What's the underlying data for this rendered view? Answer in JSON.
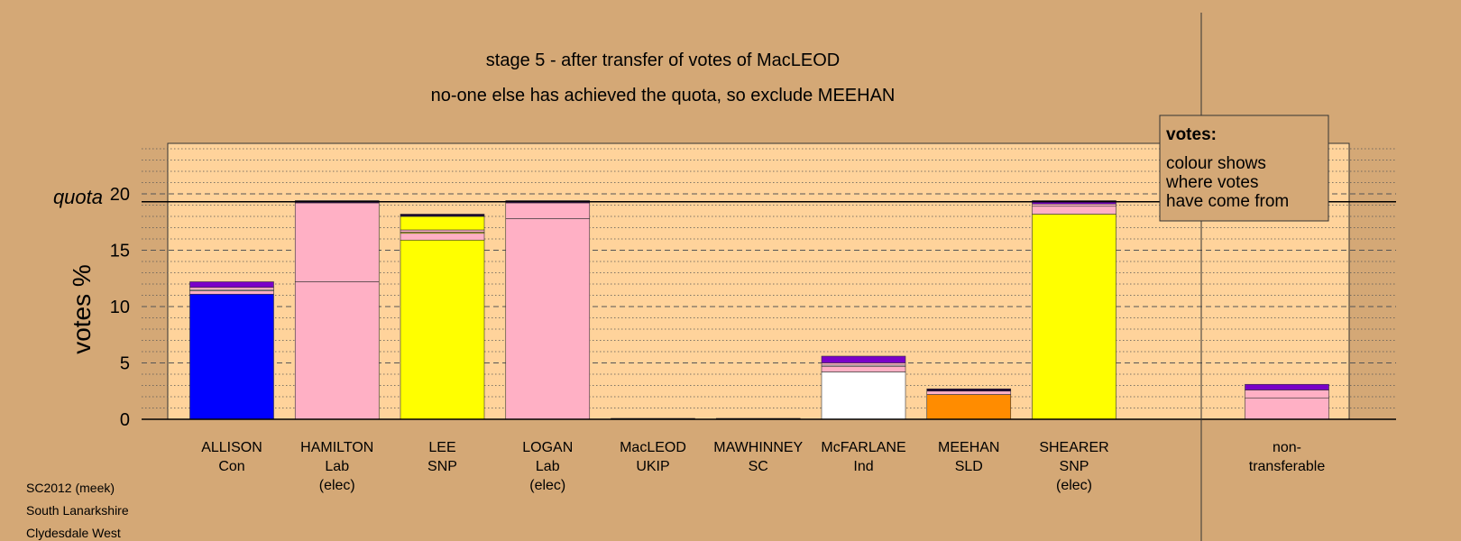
{
  "chart_data": {
    "type": "bar",
    "stacked": true,
    "title": "stage 5 - after transfer of votes of MacLEOD",
    "subtitle": "no-one else has achieved the quota, so exclude MEEHAN",
    "ylabel": "votes %",
    "quota_label": "quota",
    "quota": 19.3,
    "ylim": [
      0,
      24.5
    ],
    "yticks": [
      0,
      5,
      10,
      15,
      20
    ],
    "grid": "dotted every 1, dashed every 5",
    "legend_placement": "top-right",
    "legend": {
      "heading": "votes:",
      "lines": [
        "colour shows",
        "where votes",
        "have come from"
      ]
    },
    "colors": {
      "blue": "#0000ff",
      "pink": "#ffb0c5",
      "yellow": "#ffff00",
      "white": "#ffffff",
      "orange": "#ff8c00",
      "purple": "#7a00c8",
      "dark": "#1a0030",
      "plot_bg": "#ffd39b",
      "page_bg": "#d4a876"
    },
    "categories": [
      {
        "lines": [
          "ALLISON",
          "Con"
        ],
        "segments": [
          {
            "color": "#0000ff",
            "value": 11.1
          },
          {
            "color": "#ffb0c5",
            "value": 0.3
          },
          {
            "color": "#ffffff",
            "value": 0.1
          },
          {
            "color": "#ffb0c5",
            "value": 0.2
          },
          {
            "color": "#7a00c8",
            "value": 0.5
          }
        ]
      },
      {
        "lines": [
          "HAMILTON",
          "Lab",
          "(elec)"
        ],
        "segments": [
          {
            "color": "#ffb0c5",
            "value": 12.2
          },
          {
            "color": "#ffb0c5",
            "value": 7.0
          },
          {
            "color": "#7a00c8",
            "value": 0.1
          },
          {
            "color": "#1a0030",
            "value": 0.1
          }
        ]
      },
      {
        "lines": [
          "LEE",
          "SNP"
        ],
        "segments": [
          {
            "color": "#ffff00",
            "value": 15.9
          },
          {
            "color": "#ffb0c5",
            "value": 0.6
          },
          {
            "color": "#ffff00",
            "value": 0.1
          },
          {
            "color": "#ffb0c5",
            "value": 0.2
          },
          {
            "color": "#ffff00",
            "value": 1.2
          },
          {
            "color": "#1a0030",
            "value": 0.2
          }
        ]
      },
      {
        "lines": [
          "LOGAN",
          "Lab",
          "(elec)"
        ],
        "segments": [
          {
            "color": "#ffb0c5",
            "value": 17.8
          },
          {
            "color": "#ffb0c5",
            "value": 1.4
          },
          {
            "color": "#7a00c8",
            "value": 0.1
          },
          {
            "color": "#1a0030",
            "value": 0.1
          }
        ]
      },
      {
        "lines": [
          "MacLEOD",
          "UKIP"
        ],
        "segments": [
          {
            "color": "#1a0030",
            "value": 0.08
          }
        ]
      },
      {
        "lines": [
          "MAWHINNEY",
          "SC"
        ],
        "segments": [
          {
            "color": "#1a0030",
            "value": 0.08
          }
        ]
      },
      {
        "lines": [
          "McFARLANE",
          "Ind"
        ],
        "segments": [
          {
            "color": "#ffffff",
            "value": 4.2
          },
          {
            "color": "#ffb0c5",
            "value": 0.5
          },
          {
            "color": "#ffffff",
            "value": 0.1
          },
          {
            "color": "#ffb0c5",
            "value": 0.2
          },
          {
            "color": "#7a00c8",
            "value": 0.6
          }
        ]
      },
      {
        "lines": [
          "MEEHAN",
          "SLD"
        ],
        "segments": [
          {
            "color": "#ff8c00",
            "value": 2.2
          },
          {
            "color": "#ffb0c5",
            "value": 0.3
          },
          {
            "color": "#1a0030",
            "value": 0.2
          }
        ]
      },
      {
        "lines": [
          "SHEARER",
          "SNP",
          "(elec)"
        ],
        "segments": [
          {
            "color": "#ffff00",
            "value": 18.2
          },
          {
            "color": "#ffb0c5",
            "value": 0.7
          },
          {
            "color": "#ffb0c5",
            "value": 0.2
          },
          {
            "color": "#7a00c8",
            "value": 0.2
          },
          {
            "color": "#1a0030",
            "value": 0.1
          }
        ]
      }
    ],
    "nontransferable": {
      "lines": [
        "non-",
        "transferable"
      ],
      "segments": [
        {
          "color": "#ffb0c5",
          "value": 1.9
        },
        {
          "color": "#ffb0c5",
          "value": 0.7
        },
        {
          "color": "#7a00c8",
          "value": 0.5
        }
      ]
    }
  },
  "footer": [
    "SC2012 (meek)",
    "South Lanarkshire",
    "Clydesdale West"
  ]
}
